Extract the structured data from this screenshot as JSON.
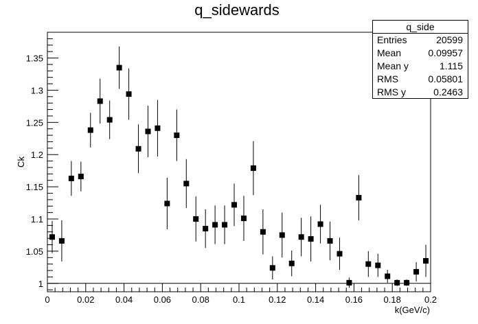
{
  "chart_data": {
    "type": "scatter",
    "title": "q_sidewards",
    "xlabel": "k(GeV/c)",
    "ylabel": "Ck",
    "xlim": [
      0,
      0.2
    ],
    "ylim": [
      0.987,
      1.39
    ],
    "reference_line": 1,
    "x_ticks": [
      0,
      0.02,
      0.04,
      0.06,
      0.08,
      0.1,
      0.12,
      0.14,
      0.16,
      0.18,
      0.2
    ],
    "x_tick_labels": [
      "0",
      "0.02",
      "0.04",
      "0.06",
      "0.08",
      "0.1",
      "0.12",
      "0.14",
      "0.16",
      "0.18",
      "0.2"
    ],
    "y_ticks": [
      1,
      1.05,
      1.1,
      1.15,
      1.2,
      1.25,
      1.3,
      1.35
    ],
    "y_tick_labels": [
      "1",
      "1.05",
      "1.1",
      "1.15",
      "1.2",
      "1.25",
      "1.3",
      "1.35"
    ],
    "points": [
      {
        "x": 0.0025,
        "y": 1.072,
        "err": 0.025
      },
      {
        "x": 0.0075,
        "y": 1.066,
        "err": 0.032
      },
      {
        "x": 0.0125,
        "y": 1.163,
        "err": 0.027
      },
      {
        "x": 0.0175,
        "y": 1.166,
        "err": 0.023
      },
      {
        "x": 0.0225,
        "y": 1.238,
        "err": 0.027
      },
      {
        "x": 0.0275,
        "y": 1.283,
        "err": 0.035
      },
      {
        "x": 0.0325,
        "y": 1.254,
        "err": 0.03
      },
      {
        "x": 0.0375,
        "y": 1.335,
        "err": 0.033
      },
      {
        "x": 0.0425,
        "y": 1.294,
        "err": 0.04
      },
      {
        "x": 0.0475,
        "y": 1.209,
        "err": 0.038
      },
      {
        "x": 0.0525,
        "y": 1.236,
        "err": 0.04
      },
      {
        "x": 0.0575,
        "y": 1.241,
        "err": 0.044
      },
      {
        "x": 0.0625,
        "y": 1.124,
        "err": 0.04
      },
      {
        "x": 0.0675,
        "y": 1.23,
        "err": 0.04
      },
      {
        "x": 0.0725,
        "y": 1.155,
        "err": 0.038
      },
      {
        "x": 0.0775,
        "y": 1.1,
        "err": 0.035
      },
      {
        "x": 0.0825,
        "y": 1.085,
        "err": 0.03
      },
      {
        "x": 0.0875,
        "y": 1.091,
        "err": 0.03
      },
      {
        "x": 0.0925,
        "y": 1.091,
        "err": 0.03
      },
      {
        "x": 0.0975,
        "y": 1.122,
        "err": 0.033
      },
      {
        "x": 0.1025,
        "y": 1.101,
        "err": 0.035
      },
      {
        "x": 0.1075,
        "y": 1.179,
        "err": 0.042
      },
      {
        "x": 0.1125,
        "y": 1.08,
        "err": 0.035
      },
      {
        "x": 0.1175,
        "y": 1.024,
        "err": 0.018
      },
      {
        "x": 0.1225,
        "y": 1.075,
        "err": 0.035
      },
      {
        "x": 0.1275,
        "y": 1.031,
        "err": 0.02
      },
      {
        "x": 0.1325,
        "y": 1.072,
        "err": 0.03
      },
      {
        "x": 0.1375,
        "y": 1.069,
        "err": 0.035
      },
      {
        "x": 0.1425,
        "y": 1.092,
        "err": 0.03
      },
      {
        "x": 0.1475,
        "y": 1.066,
        "err": 0.03
      },
      {
        "x": 0.1525,
        "y": 1.046,
        "err": 0.025
      },
      {
        "x": 0.1575,
        "y": 1.001,
        "err": 0.008
      },
      {
        "x": 0.1625,
        "y": 1.133,
        "err": 0.035
      },
      {
        "x": 0.1675,
        "y": 1.03,
        "err": 0.02
      },
      {
        "x": 0.1725,
        "y": 1.028,
        "err": 0.018
      },
      {
        "x": 0.1775,
        "y": 1.011,
        "err": 0.01
      },
      {
        "x": 0.1825,
        "y": 1.001,
        "err": 0.005
      },
      {
        "x": 0.1875,
        "y": 1.001,
        "err": 0.005
      },
      {
        "x": 0.1925,
        "y": 1.018,
        "err": 0.015
      },
      {
        "x": 0.1975,
        "y": 1.035,
        "err": 0.025
      }
    ]
  },
  "stats": {
    "title": "q_side",
    "rows": [
      {
        "label": "Entries",
        "value": "20599"
      },
      {
        "label": "Mean",
        "value": "0.09957"
      },
      {
        "label": "Mean y",
        "value": "1.115"
      },
      {
        "label": "RMS",
        "value": "0.05801"
      },
      {
        "label": "RMS y",
        "value": "0.2463"
      }
    ]
  }
}
